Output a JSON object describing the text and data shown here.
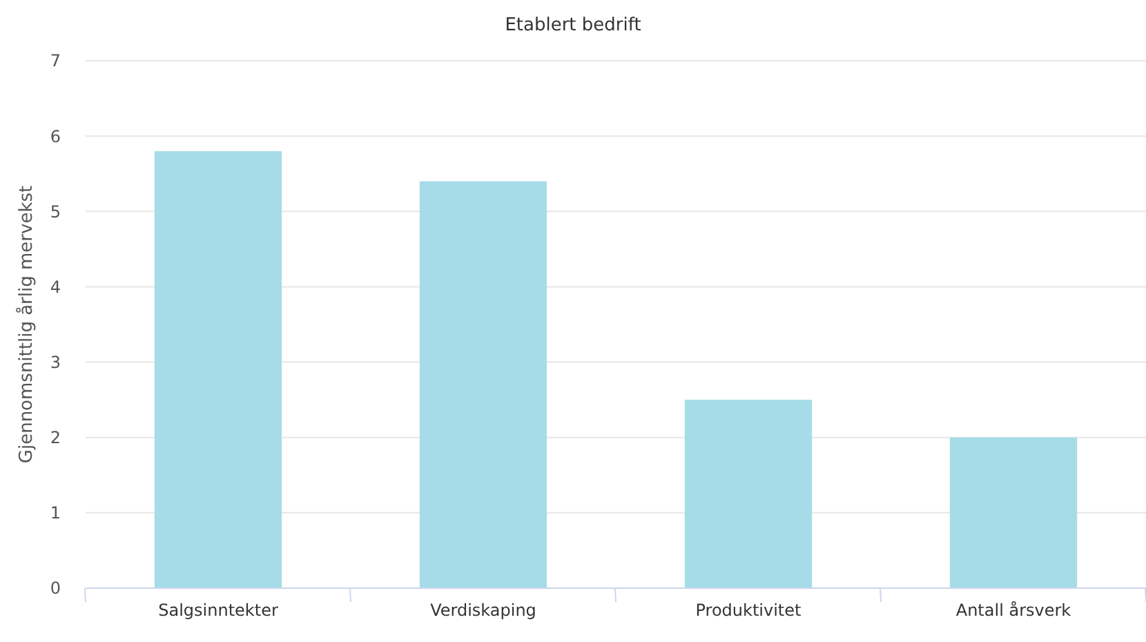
{
  "chart_data": {
    "type": "bar",
    "title": "Etablert bedrift",
    "ylabel": "Gjennomsnittlig årlig mervekst",
    "categories": [
      "Salgsinntekter",
      "Verdiskaping",
      "Produktivitet",
      "Antall årsverk"
    ],
    "values": [
      5.8,
      5.4,
      2.5,
      2.0
    ],
    "color": "#a5dce8",
    "ylim": [
      0,
      7
    ],
    "yticks": [
      0,
      1,
      2,
      3,
      4,
      5,
      6,
      7
    ],
    "grid": "y"
  }
}
